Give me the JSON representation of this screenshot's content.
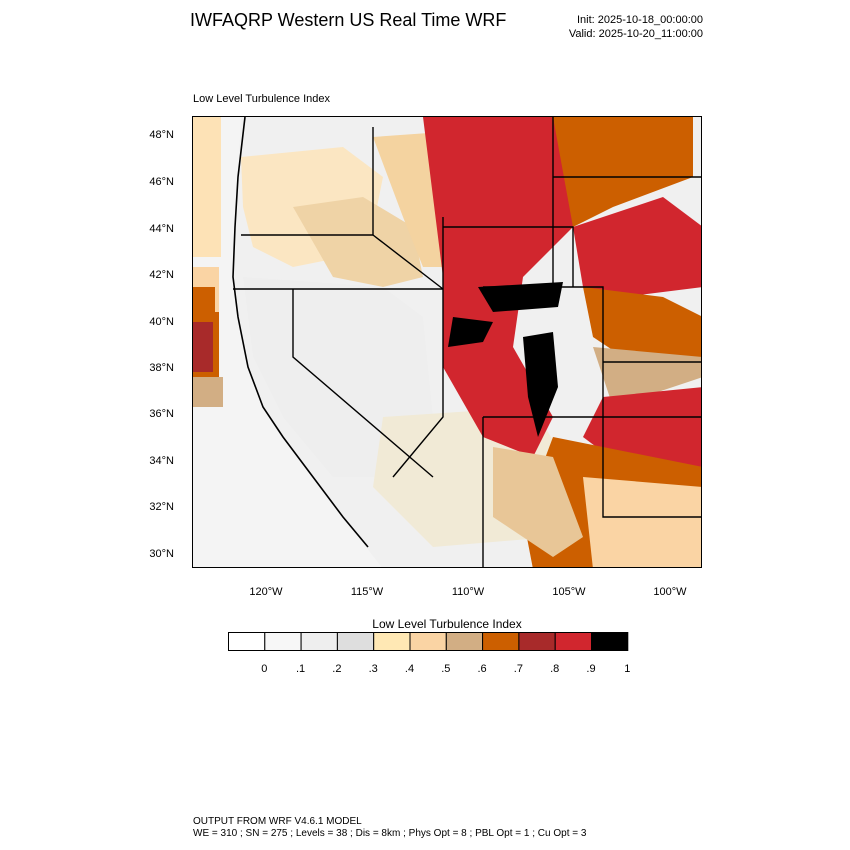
{
  "header": {
    "title": "IWFAQRP Western US Real Time WRF",
    "init": "Init: 2025-10-18_00:00:00",
    "valid": "Valid: 2025-10-20_11:00:00"
  },
  "map": {
    "subtitle": "Low Level Turbulence Index",
    "lat_labels": [
      "48°N",
      "46°N",
      "44°N",
      "42°N",
      "40°N",
      "38°N",
      "36°N",
      "34°N",
      "32°N",
      "30°N"
    ],
    "lon_labels": [
      "120°W",
      "115°W",
      "110°W",
      "105°W",
      "100°W"
    ]
  },
  "colorbar": {
    "title": "Low Level Turbulence Index",
    "tick_labels": [
      "0",
      ".1",
      ".2",
      ".3",
      ".4",
      ".5",
      ".6",
      ".7",
      ".8",
      ".9",
      "1"
    ],
    "colors": [
      "#ffffff",
      "#f7f7f7",
      "#eeeeee",
      "#dedede",
      "#ffe8b4",
      "#fad4a4",
      "#d2ae84",
      "#cc5f00",
      "#a82a2a",
      "#d1262e",
      "#000000"
    ]
  },
  "footer": {
    "line1": "OUTPUT FROM WRF V4.6.1 MODEL",
    "line2": "WE = 310 ; SN = 275 ; Levels = 38 ; Dis = 8km ; Phys Opt = 8 ; PBL Opt = 1 ; Cu Opt = 3"
  }
}
